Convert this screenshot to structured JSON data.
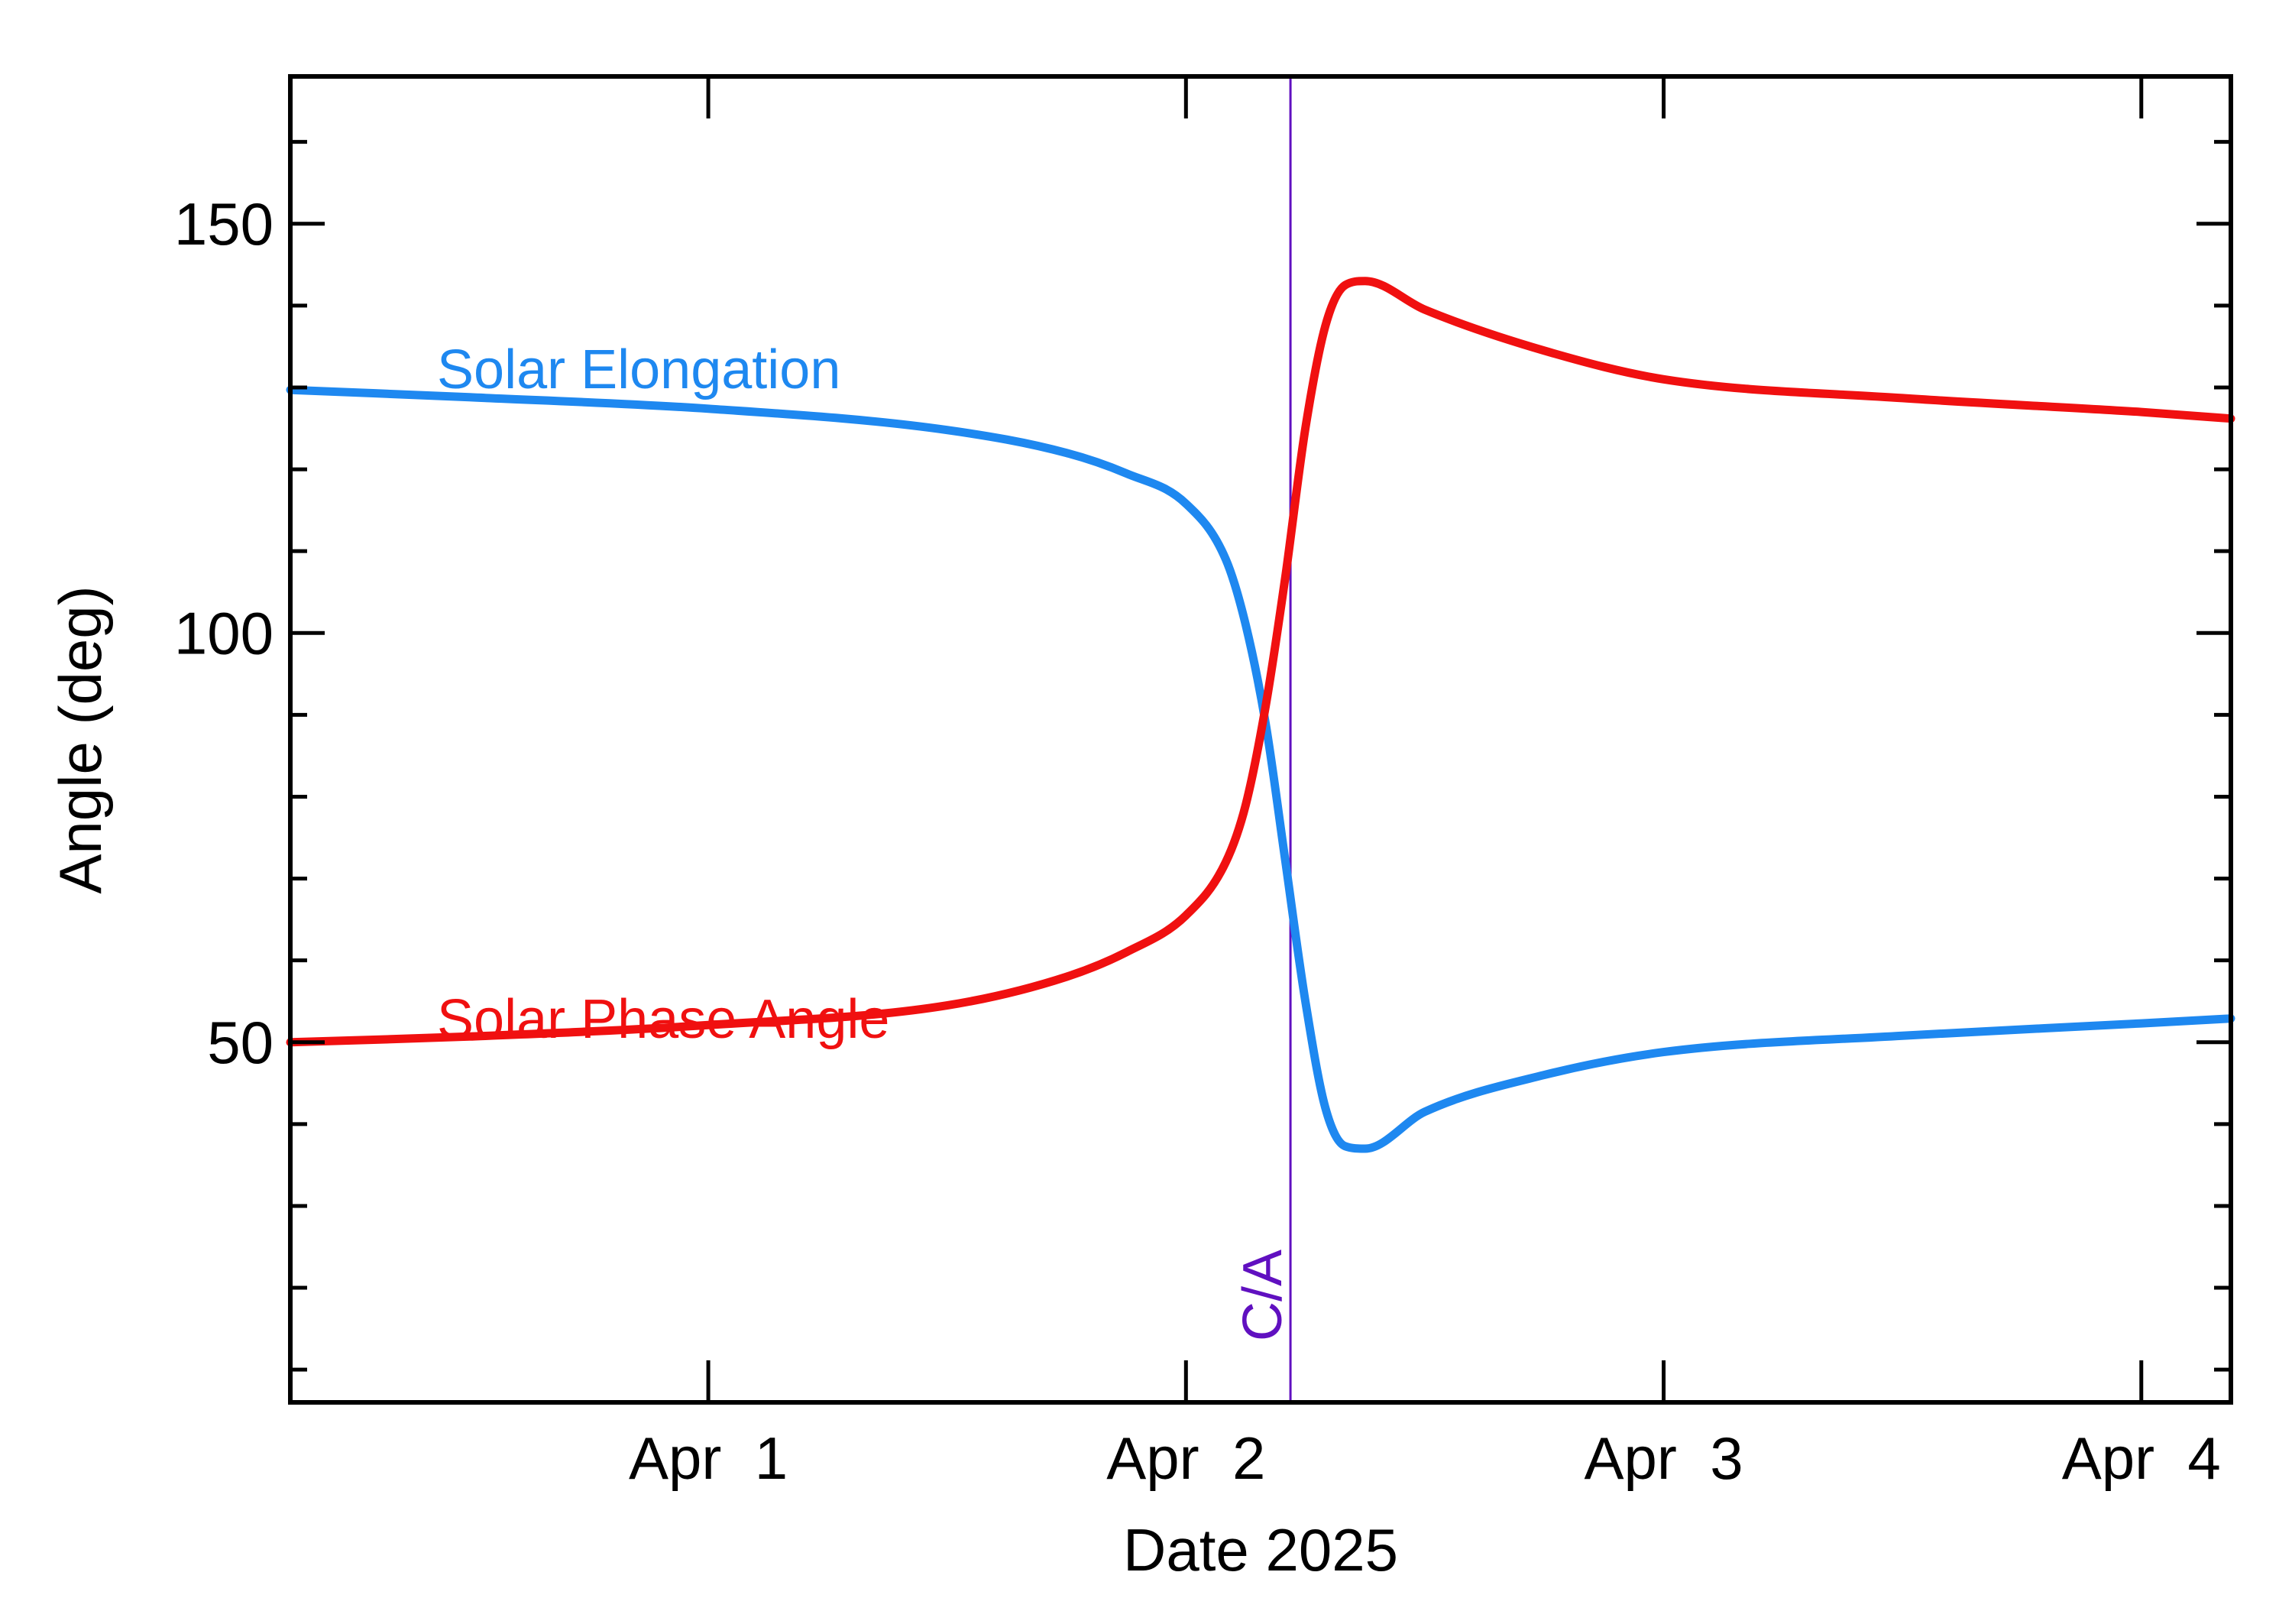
{
  "chart_data": {
    "type": "line",
    "title": "",
    "xlabel": "Date 2025",
    "ylabel": "Angle (deg)",
    "xlim": [
      "2025-03-31T03:00",
      "2025-04-04T04:30"
    ],
    "ylim": [
      6,
      168
    ],
    "x_ticks": [
      {
        "value": "2025-04-01T00:00",
        "label": "Apr  1"
      },
      {
        "value": "2025-04-02T00:00",
        "label": "Apr  2"
      },
      {
        "value": "2025-04-03T00:00",
        "label": "Apr  3"
      },
      {
        "value": "2025-04-04T00:00",
        "label": "Apr  4"
      }
    ],
    "y_ticks": [
      50,
      100,
      150
    ],
    "grid": false,
    "legend": "none",
    "series": [
      {
        "name": "Solar Elongation",
        "color": "#1E88F0",
        "points": [
          [
            "2025-03-31T03:00",
            129.7
          ],
          [
            "2025-03-31T12:00",
            128.8
          ],
          [
            "2025-04-01T00:00",
            127.4
          ],
          [
            "2025-04-01T12:00",
            124.8
          ],
          [
            "2025-04-01T18:00",
            122.0
          ],
          [
            "2025-04-01T21:00",
            119.5
          ],
          [
            "2025-04-02T00:00",
            115.8
          ],
          [
            "2025-04-02T02:00",
            109.0
          ],
          [
            "2025-04-02T03:00",
            101.0
          ],
          [
            "2025-04-02T04:00",
            89.0
          ],
          [
            "2025-04-02T05:00",
            72.0
          ],
          [
            "2025-04-02T06:00",
            55.0
          ],
          [
            "2025-04-02T07:00",
            42.0
          ],
          [
            "2025-04-02T08:00",
            37.3
          ],
          [
            "2025-04-02T09:00",
            37.0
          ],
          [
            "2025-04-02T12:00",
            41.5
          ],
          [
            "2025-04-02T18:00",
            46.0
          ],
          [
            "2025-04-03T00:00",
            48.8
          ],
          [
            "2025-04-03T12:00",
            50.8
          ],
          [
            "2025-04-04T00:00",
            52.3
          ],
          [
            "2025-04-04T04:30",
            52.9
          ]
        ]
      },
      {
        "name": "Solar Phase Angle",
        "color": "#F01010",
        "points": [
          [
            "2025-03-31T03:00",
            50.0
          ],
          [
            "2025-03-31T12:00",
            50.7
          ],
          [
            "2025-04-01T00:00",
            52.1
          ],
          [
            "2025-04-01T12:00",
            54.5
          ],
          [
            "2025-04-01T18:00",
            58.0
          ],
          [
            "2025-04-01T21:00",
            61.0
          ],
          [
            "2025-04-02T00:00",
            65.5
          ],
          [
            "2025-04-02T02:00",
            72.0
          ],
          [
            "2025-04-02T03:00",
            79.0
          ],
          [
            "2025-04-02T04:00",
            91.0
          ],
          [
            "2025-04-02T05:00",
            107.0
          ],
          [
            "2025-04-02T06:00",
            125.0
          ],
          [
            "2025-04-02T07:00",
            137.5
          ],
          [
            "2025-04-02T08:00",
            142.5
          ],
          [
            "2025-04-02T09:00",
            143.0
          ],
          [
            "2025-04-02T12:00",
            139.5
          ],
          [
            "2025-04-02T18:00",
            134.5
          ],
          [
            "2025-04-03T00:00",
            131.0
          ],
          [
            "2025-04-03T12:00",
            128.7
          ],
          [
            "2025-04-04T00:00",
            127.0
          ],
          [
            "2025-04-04T04:30",
            126.2
          ]
        ]
      }
    ],
    "annotations": [
      {
        "type": "vline",
        "x": "2025-04-02T05:15",
        "label": "C/A",
        "color": "#6010C0"
      }
    ]
  }
}
